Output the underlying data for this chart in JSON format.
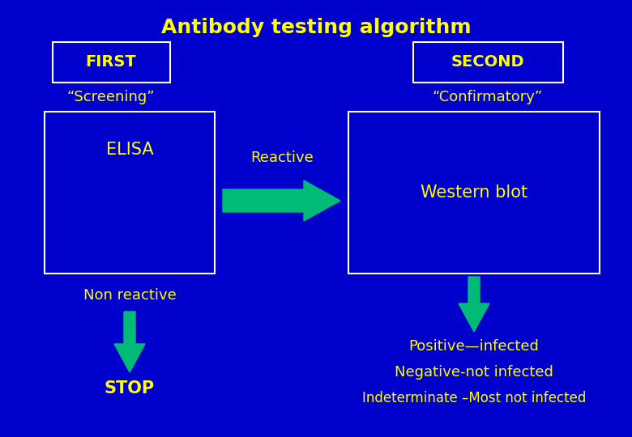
{
  "bg_color": "#0000CC",
  "title": "Antibody testing algorithm",
  "title_color": "#FFFF00",
  "title_fontsize": 18,
  "title_fontweight": "bold",
  "box_edge_color": "#FFFFFF",
  "label_color": "#FFFF00",
  "arrow_color": "#00BB77",
  "first_label": "FIRST",
  "second_label": "SECOND",
  "screening_label": "“Screening”",
  "confirmatory_label": "“Confirmatory”",
  "elisa_label": "ELISA",
  "western_label": "Western blot",
  "reactive_label": "Reactive",
  "non_reactive_label": "Non reactive",
  "stop_label": "STOP",
  "positive_line1": "Positive—infected",
  "positive_line2": "Negative-not infected",
  "positive_line3": "Indeterminate –Most not infected",
  "lw": 1.5
}
